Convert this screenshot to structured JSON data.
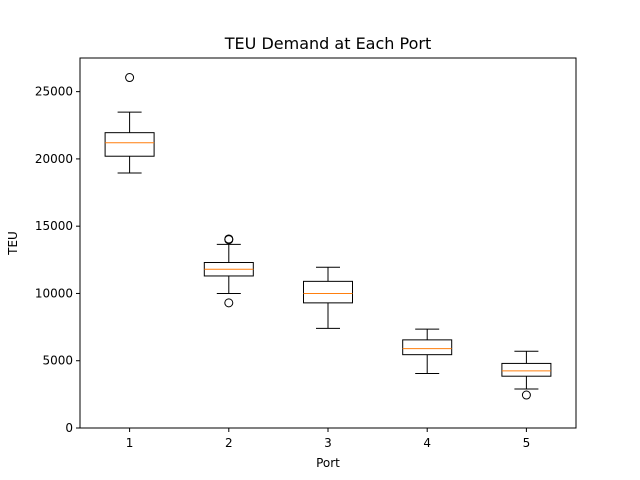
{
  "chart_data": {
    "type": "box",
    "title": "TEU Demand at Each Port",
    "xlabel": "Port",
    "ylabel": "TEU",
    "ylim": [
      0,
      27500
    ],
    "yticks": [
      0,
      5000,
      10000,
      15000,
      20000,
      25000
    ],
    "ytick_labels": [
      "0",
      "5000",
      "10000",
      "15000",
      "20000",
      "25000"
    ],
    "categories": [
      "1",
      "2",
      "3",
      "4",
      "5"
    ],
    "boxes": [
      {
        "category": "1",
        "whisker_low": 18950,
        "q1": 20200,
        "median": 21200,
        "q3": 21950,
        "whisker_high": 23480,
        "outliers": [
          26050
        ]
      },
      {
        "category": "2",
        "whisker_low": 10000,
        "q1": 11300,
        "median": 11800,
        "q3": 12300,
        "whisker_high": 13650,
        "outliers": [
          14000,
          14050,
          9300
        ]
      },
      {
        "category": "3",
        "whisker_low": 7400,
        "q1": 9300,
        "median": 10000,
        "q3": 10900,
        "whisker_high": 11950,
        "outliers": []
      },
      {
        "category": "4",
        "whisker_low": 4050,
        "q1": 5450,
        "median": 5900,
        "q3": 6550,
        "whisker_high": 7350,
        "outliers": []
      },
      {
        "category": "5",
        "whisker_low": 2900,
        "q1": 3850,
        "median": 4250,
        "q3": 4800,
        "whisker_high": 5700,
        "outliers": [
          2450
        ]
      }
    ],
    "grid": false,
    "colors": {
      "box": "#000000",
      "median": "#ff7f0e",
      "outlier_edge": "#000000",
      "background": "#ffffff"
    }
  }
}
